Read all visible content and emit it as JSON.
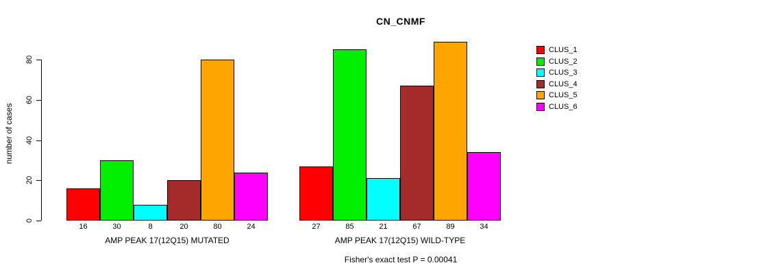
{
  "chart_data": {
    "type": "bar",
    "title": "CN_CNMF",
    "ylabel": "number of cases",
    "ylim": [
      0,
      80
    ],
    "yticks": [
      0,
      20,
      40,
      60,
      80
    ],
    "grid": false,
    "legend_position": "right-outside",
    "categories": [
      "AMP PEAK 17(12Q15) MUTATED",
      "AMP PEAK 17(12Q15) WILD-TYPE"
    ],
    "groups": [
      {
        "label": "AMP PEAK 17(12Q15) MUTATED",
        "values": [
          16,
          30,
          8,
          20,
          80,
          24
        ]
      },
      {
        "label": "AMP PEAK 17(12Q15) WILD-TYPE",
        "values": [
          27,
          85,
          21,
          67,
          89,
          34
        ]
      }
    ],
    "series": [
      {
        "name": "CLUS_1",
        "color": "#FF0000"
      },
      {
        "name": "CLUS_2",
        "color": "#00EE00"
      },
      {
        "name": "CLUS_3",
        "color": "#00FFFF"
      },
      {
        "name": "CLUS_4",
        "color": "#A52A2A"
      },
      {
        "name": "CLUS_5",
        "color": "#FFA500"
      },
      {
        "name": "CLUS_6",
        "color": "#FF00FF"
      }
    ],
    "bar_value_labels": true,
    "subtitle": "Fisher's exact test P = 0.00041",
    "axis_color": "#000000",
    "background_color": "#FFFFFF"
  }
}
